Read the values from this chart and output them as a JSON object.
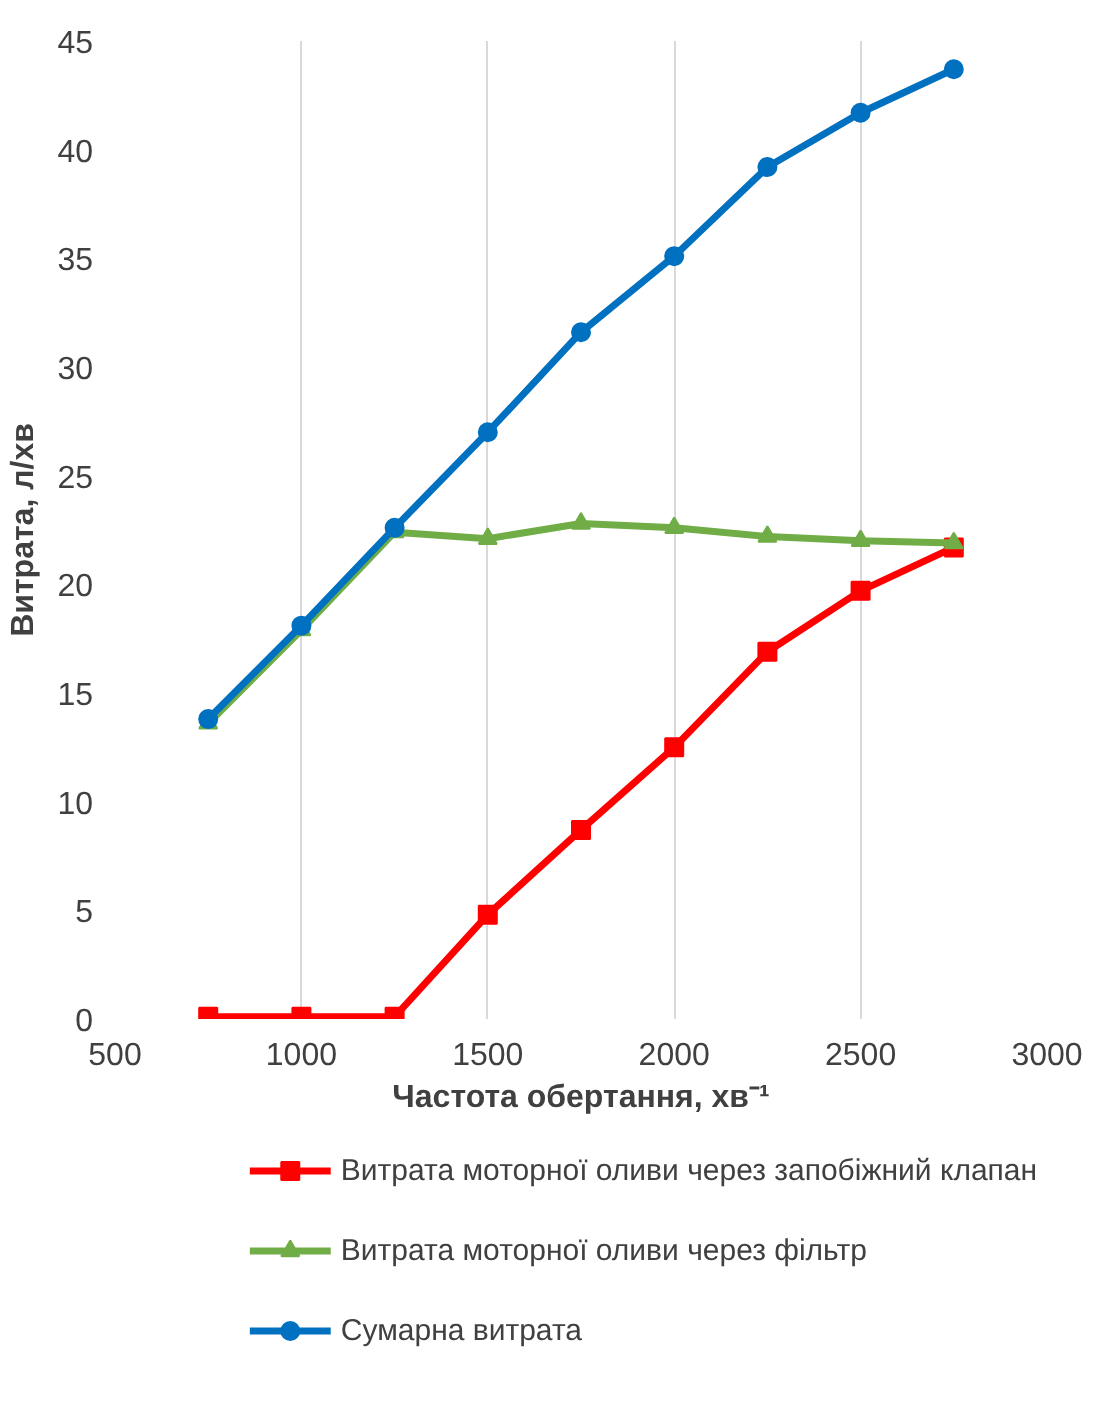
{
  "chart_data": {
    "type": "line",
    "xlabel": "Частота обертання, хв⁻¹",
    "ylabel": "Витрата, л/хв",
    "x": [
      750,
      1000,
      1250,
      1500,
      1750,
      2000,
      2250,
      2500,
      2750
    ],
    "series": [
      {
        "name": "Витрата моторної оливи через запобіжний клапан",
        "color": "#ff0000",
        "marker": "square",
        "values": [
          0.1,
          0.1,
          0.1,
          4.8,
          8.7,
          12.5,
          16.9,
          19.7,
          21.7
        ]
      },
      {
        "name": "Витрата моторної оливи через фільтр",
        "color": "#70ad47",
        "marker": "triangle",
        "values": [
          13.6,
          17.9,
          22.4,
          22.1,
          22.8,
          22.6,
          22.2,
          22.0,
          21.9
        ]
      },
      {
        "name": "Сумарна витрата",
        "color": "#0070c0",
        "marker": "circle",
        "values": [
          13.8,
          18.1,
          22.6,
          27.0,
          31.6,
          35.1,
          39.2,
          41.7,
          43.7
        ]
      }
    ],
    "xlim": [
      500,
      3000
    ],
    "xticks": [
      500,
      1000,
      1500,
      2000,
      2500,
      3000
    ],
    "ylim": [
      0,
      45
    ],
    "yticks": [
      0,
      5,
      10,
      15,
      20,
      25,
      30,
      35,
      40,
      45
    ],
    "grid": "x",
    "legend": "bottom",
    "line_style": "solid"
  }
}
